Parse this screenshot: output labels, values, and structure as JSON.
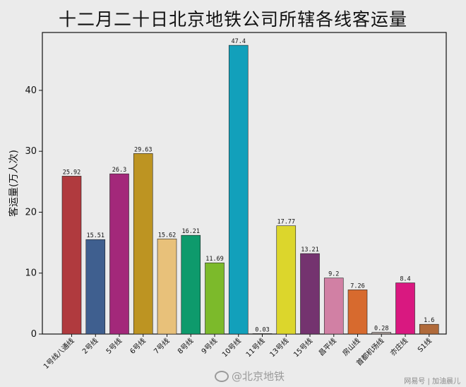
{
  "chart_data": {
    "type": "bar",
    "title": "十二月二十日北京地铁公司所辖各线客运量",
    "ylabel": "客运量(万人次)",
    "xlabel": "",
    "ylim": [
      0,
      49.5
    ],
    "yticks": [
      0,
      10,
      20,
      30,
      40
    ],
    "grid": false,
    "categories": [
      "1号线八通线",
      "2号线",
      "5号线",
      "6号线",
      "7号线",
      "8号线",
      "9号线",
      "10号线",
      "11号线",
      "13号线",
      "15号线",
      "昌平线",
      "房山线",
      "首都机场线",
      "亦庄线",
      "S1线"
    ],
    "values": [
      25.92,
      15.51,
      26.3,
      29.63,
      15.62,
      16.21,
      11.69,
      47.4,
      0.03,
      17.77,
      13.21,
      9.2,
      7.26,
      0.28,
      8.4,
      1.6
    ],
    "value_labels": [
      "25.92",
      "15.51",
      "26.3",
      "29.63",
      "15.62",
      "16.21",
      "11.69",
      "47.4",
      "0.03",
      "17.77",
      "13.21",
      "9.2",
      "7.26",
      "0.28",
      "8.4",
      "1.6"
    ],
    "colors": [
      "#b03a3e",
      "#3f5f8f",
      "#a3287a",
      "#bd9422",
      "#e8c17a",
      "#0e9a6c",
      "#7cba2b",
      "#12a0bb",
      "#d6c8a8",
      "#dcd62c",
      "#74336f",
      "#d180a4",
      "#d76a2e",
      "#a99c98",
      "#d91880",
      "#b06a3a"
    ]
  },
  "watermark": {
    "icon": "weibo-icon",
    "text": "@北京地铁"
  },
  "credit": "网易号 | 加油晨儿"
}
